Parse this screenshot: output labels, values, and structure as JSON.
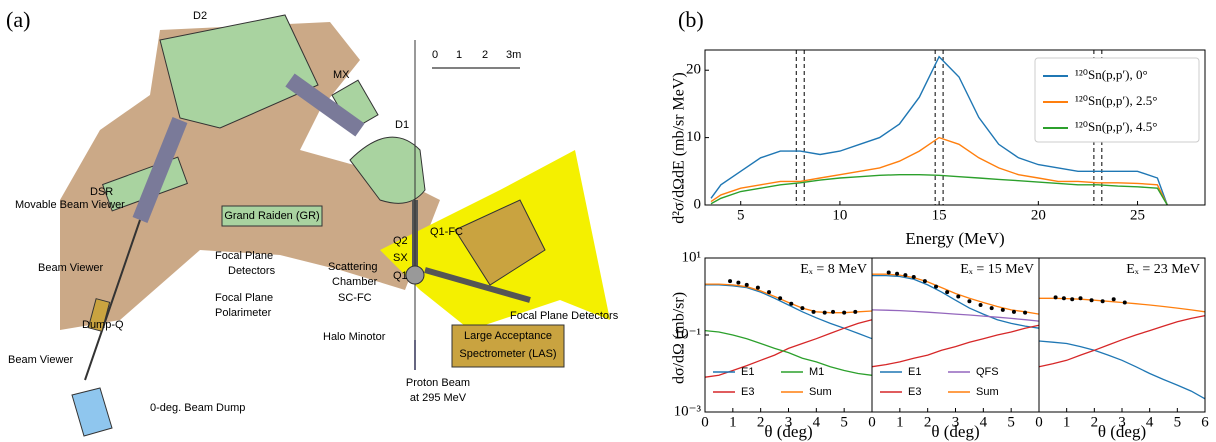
{
  "diagram": {
    "panel_label": "(a)",
    "labels": [
      "D2",
      "MX",
      "D1",
      "0",
      "1",
      "2",
      "3m",
      "DSR",
      "Movable Beam Viewer",
      "Grand Raiden (GR)",
      "Q1-FC",
      "Q2",
      "SX",
      "Q1",
      "Focal Plane",
      "Detectors",
      "Beam Viewer",
      "Scattering",
      "Chamber",
      "Focal Plane",
      "Polarimeter",
      "SC-FC",
      "Dump-Q",
      "Halo Minotor",
      "Large Acceptance",
      "Spectrometer (LAS)",
      "Focal Plane Detectors",
      "Beam Viewer",
      "Proton Beam",
      "at 295 MeV",
      "0-deg. Beam Dump"
    ]
  },
  "panel_b_label": "(b)",
  "chart_data": [
    {
      "type": "line",
      "xlabel": "Energy (MeV)",
      "ylabel": "d²σ/dΩdE (mb/sr MeV)",
      "xlim": [
        3.2,
        28.4
      ],
      "ylim": [
        0,
        23
      ],
      "xticks": [
        5,
        10,
        15,
        20,
        25
      ],
      "yticks": [
        0,
        10,
        20
      ],
      "legend": "upper right",
      "vlines": [
        7.8,
        8.2,
        14.8,
        15.2,
        22.8,
        23.2
      ],
      "x": [
        3.5,
        4,
        5,
        6,
        7,
        8,
        9,
        10,
        11,
        12,
        13,
        14,
        15,
        16,
        17,
        18,
        19,
        20,
        21,
        22,
        23,
        24,
        25,
        26,
        26.5
      ],
      "series": [
        {
          "name": "¹²⁰Sn(p,p′), 0°",
          "color": "#1f77b4",
          "values": [
            1,
            3,
            5,
            7,
            8,
            8,
            7.5,
            8,
            9,
            10,
            12,
            16,
            22,
            19,
            13,
            9,
            7,
            6,
            5.5,
            5,
            5,
            5,
            5,
            4,
            0
          ]
        },
        {
          "name": "¹²⁰Sn(p,p′), 2.5°",
          "color": "#ff7f0e",
          "values": [
            0.5,
            1.5,
            2.5,
            3,
            3.5,
            3.5,
            4,
            4.5,
            5,
            5.5,
            6.5,
            8,
            10,
            9,
            7,
            5.5,
            4.5,
            4,
            3.5,
            3.5,
            3.3,
            3.3,
            3.2,
            3,
            0
          ]
        },
        {
          "name": "¹²⁰Sn(p,p′), 4.5°",
          "color": "#2ca02c",
          "values": [
            0.2,
            1,
            2,
            2.5,
            3,
            3.3,
            3.7,
            4,
            4.2,
            4.4,
            4.5,
            4.5,
            4.4,
            4.2,
            4,
            3.8,
            3.6,
            3.4,
            3.2,
            3,
            3,
            2.8,
            2.7,
            2.5,
            0
          ]
        }
      ]
    },
    {
      "type": "line",
      "ylog": true,
      "annotation": "Eₓ = 8 MeV",
      "xlabel": "θ (deg)",
      "ylabel": "dσ/dΩ (mb/sr)",
      "xlim": [
        0,
        6
      ],
      "ylim": [
        0.001,
        10
      ],
      "xticks": [
        0,
        1,
        2,
        3,
        4,
        5
      ],
      "yticks": [
        {
          "value": 10,
          "label": "10¹"
        },
        {
          "value": 0.1,
          "label": "10⁻¹"
        },
        {
          "value": 0.001,
          "label": "10⁻³"
        }
      ],
      "legend": "lower center",
      "x": [
        0,
        0.5,
        1,
        1.5,
        2,
        2.5,
        3,
        3.5,
        4,
        4.5,
        5,
        5.5,
        6
      ],
      "series": [
        {
          "name": "E1",
          "color": "#1f77b4",
          "values": [
            2.0,
            2.0,
            1.9,
            1.7,
            1.3,
            0.9,
            0.6,
            0.4,
            0.28,
            0.2,
            0.15,
            0.11,
            0.08
          ]
        },
        {
          "name": "E3",
          "color": "#d62728",
          "values": [
            0.008,
            0.009,
            0.012,
            0.016,
            0.022,
            0.03,
            0.045,
            0.06,
            0.08,
            0.11,
            0.15,
            0.2,
            0.25
          ]
        },
        {
          "name": "M1",
          "color": "#2ca02c",
          "values": [
            0.13,
            0.12,
            0.1,
            0.08,
            0.06,
            0.045,
            0.035,
            0.025,
            0.02,
            0.015,
            0.012,
            0.01,
            0.009
          ]
        },
        {
          "name": "Sum",
          "color": "#ff7f0e",
          "values": [
            2.1,
            2.1,
            2.0,
            1.8,
            1.4,
            1.0,
            0.7,
            0.5,
            0.4,
            0.38,
            0.38,
            0.4,
            0.42
          ]
        }
      ],
      "points": {
        "color": "#000000",
        "x": [
          0.9,
          1.2,
          1.5,
          1.9,
          2.3,
          2.7,
          3.1,
          3.5,
          3.9,
          4.3,
          4.6,
          5.0,
          5.4
        ],
        "values": [
          2.5,
          2.3,
          2.0,
          1.7,
          1.3,
          0.9,
          0.65,
          0.5,
          0.4,
          0.38,
          0.4,
          0.38,
          0.4
        ]
      }
    },
    {
      "type": "line",
      "ylog": true,
      "annotation": "Eₓ = 15 MeV",
      "xlabel": "θ (deg)",
      "xlim": [
        0,
        6
      ],
      "ylim": [
        0.001,
        10
      ],
      "xticks": [
        0,
        1,
        2,
        3,
        4,
        5
      ],
      "legend": "lower center",
      "x": [
        0,
        0.5,
        1,
        1.5,
        2,
        2.5,
        3,
        3.5,
        4,
        4.5,
        5,
        5.5,
        6
      ],
      "series": [
        {
          "name": "E1",
          "color": "#1f77b4",
          "values": [
            3.5,
            3.5,
            3.3,
            2.8,
            2.0,
            1.3,
            0.8,
            0.5,
            0.35,
            0.25,
            0.2,
            0.17,
            0.15
          ]
        },
        {
          "name": "E3",
          "color": "#d62728",
          "values": [
            0.015,
            0.017,
            0.02,
            0.025,
            0.03,
            0.04,
            0.05,
            0.065,
            0.08,
            0.1,
            0.12,
            0.15,
            0.18
          ]
        },
        {
          "name": "QFS",
          "color": "#9467bd",
          "values": [
            0.45,
            0.44,
            0.43,
            0.41,
            0.39,
            0.37,
            0.35,
            0.33,
            0.31,
            0.29,
            0.27,
            0.25,
            0.23
          ]
        },
        {
          "name": "Sum",
          "color": "#ff7f0e",
          "values": [
            3.8,
            3.8,
            3.6,
            3.1,
            2.4,
            1.7,
            1.2,
            0.9,
            0.7,
            0.55,
            0.45,
            0.4,
            0.35
          ]
        }
      ],
      "points": {
        "color": "#000000",
        "x": [
          0.6,
          0.9,
          1.2,
          1.5,
          1.9,
          2.3,
          2.7,
          3.1,
          3.5,
          3.9,
          4.3,
          4.7,
          5.1,
          5.5
        ],
        "values": [
          4.2,
          3.9,
          3.6,
          3.2,
          2.5,
          1.8,
          1.3,
          1.0,
          0.75,
          0.6,
          0.5,
          0.45,
          0.4,
          0.38
        ]
      }
    },
    {
      "type": "line",
      "ylog": true,
      "annotation": "Eₓ = 23 MeV",
      "xlabel": "θ (deg)",
      "xlim": [
        0,
        6
      ],
      "ylim": [
        0.001,
        10
      ],
      "xticks": [
        0,
        1,
        2,
        3,
        4,
        5,
        6
      ],
      "x": [
        0,
        0.5,
        1,
        1.5,
        2,
        2.5,
        3,
        3.5,
        4,
        4.5,
        5,
        5.5,
        6
      ],
      "series": [
        {
          "color": "#1f77b4",
          "values": [
            0.07,
            0.065,
            0.06,
            0.05,
            0.04,
            0.03,
            0.022,
            0.015,
            0.01,
            0.007,
            0.005,
            0.0035,
            0.0022
          ]
        },
        {
          "color": "#d62728",
          "values": [
            0.015,
            0.018,
            0.022,
            0.03,
            0.04,
            0.055,
            0.075,
            0.1,
            0.13,
            0.17,
            0.22,
            0.27,
            0.32
          ]
        },
        {
          "color": "#ff7f0e",
          "values": [
            0.9,
            0.9,
            0.88,
            0.85,
            0.8,
            0.75,
            0.7,
            0.65,
            0.6,
            0.55,
            0.5,
            0.45,
            0.4
          ]
        }
      ],
      "points": {
        "color": "#000000",
        "x": [
          0.6,
          0.9,
          1.2,
          1.5,
          1.9,
          2.3,
          2.7,
          3.1
        ],
        "values": [
          0.95,
          0.9,
          0.85,
          0.9,
          0.8,
          0.75,
          0.85,
          0.7
        ]
      }
    }
  ]
}
